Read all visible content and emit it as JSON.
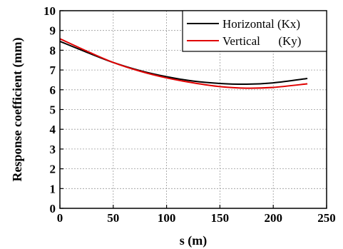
{
  "chart_data": {
    "type": "line",
    "title": "",
    "xlabel": "s (m)",
    "ylabel": "Response coefficient (mm)",
    "xlim": [
      0,
      250
    ],
    "ylim": [
      0,
      10
    ],
    "xticks": [
      "0",
      "50",
      "100",
      "150",
      "200",
      "250"
    ],
    "yticks": [
      "0",
      "1",
      "2",
      "3",
      "4",
      "5",
      "6",
      "7",
      "8",
      "9",
      "10"
    ],
    "grid": true,
    "legend_position": "top-right",
    "series": [
      {
        "name": "Horizontal (Kx)",
        "color": "#000000",
        "x": [
          0,
          25,
          50,
          75,
          100,
          125,
          150,
          175,
          200,
          232
        ],
        "y": [
          8.45,
          7.9,
          7.38,
          6.97,
          6.66,
          6.44,
          6.32,
          6.28,
          6.35,
          6.57
        ]
      },
      {
        "name": "Vertical      (Ky)",
        "color": "#e00000",
        "x": [
          0,
          25,
          50,
          75,
          100,
          125,
          150,
          175,
          200,
          232
        ],
        "y": [
          8.58,
          7.96,
          7.38,
          6.94,
          6.6,
          6.35,
          6.16,
          6.08,
          6.12,
          6.3
        ]
      }
    ]
  }
}
